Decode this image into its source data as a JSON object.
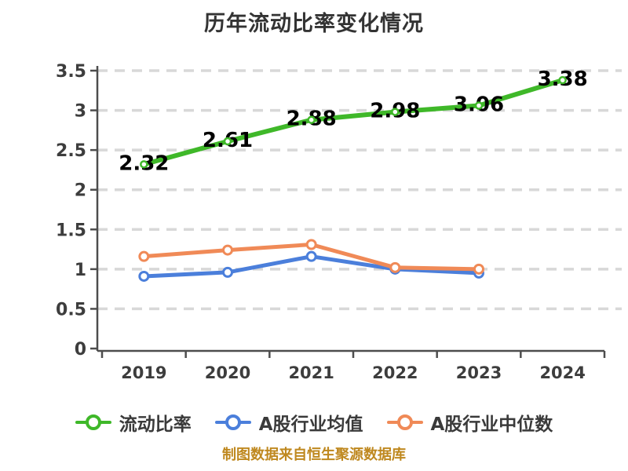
{
  "title": "历年流动比率变化情况",
  "footer": {
    "text": "制图数据来自恒生聚源数据库",
    "color": "#bf881f"
  },
  "chart_data": {
    "type": "line",
    "title": "历年流动比率变化情况",
    "categories": [
      "2019",
      "2020",
      "2021",
      "2022",
      "2023",
      "2024"
    ],
    "series": [
      {
        "name": "流动比率",
        "key": "current-ratio",
        "color": "#3fb829",
        "values": [
          2.32,
          2.61,
          2.88,
          2.98,
          3.06,
          3.38
        ],
        "labels": [
          "2.32",
          "2.61",
          "2.88",
          "2.98",
          "3.06",
          "3.38"
        ]
      },
      {
        "name": "A股行业均值",
        "key": "a-share-industry-mean",
        "color": "#4b7fdb",
        "values": [
          0.91,
          0.96,
          1.16,
          1.0,
          0.95,
          null
        ]
      },
      {
        "name": "A股行业中位数",
        "key": "a-share-industry-median",
        "color": "#f08a57",
        "values": [
          1.16,
          1.24,
          1.31,
          1.02,
          1.0,
          null
        ]
      }
    ],
    "ylim": [
      0,
      3.5
    ],
    "ytick_step": 0.5,
    "yticks": [
      "0",
      "0.5",
      "1",
      "1.5",
      "2",
      "2.5",
      "3",
      "3.5"
    ],
    "grid": "horizontal-dashed",
    "legend_position": "bottom",
    "colors": {
      "grid_line": "#d8d8d8",
      "axis_line": "#4d4d4d",
      "tick_label": "#3d3d3d",
      "value_label": "#000000",
      "marker_fill": "#ffffff"
    }
  }
}
